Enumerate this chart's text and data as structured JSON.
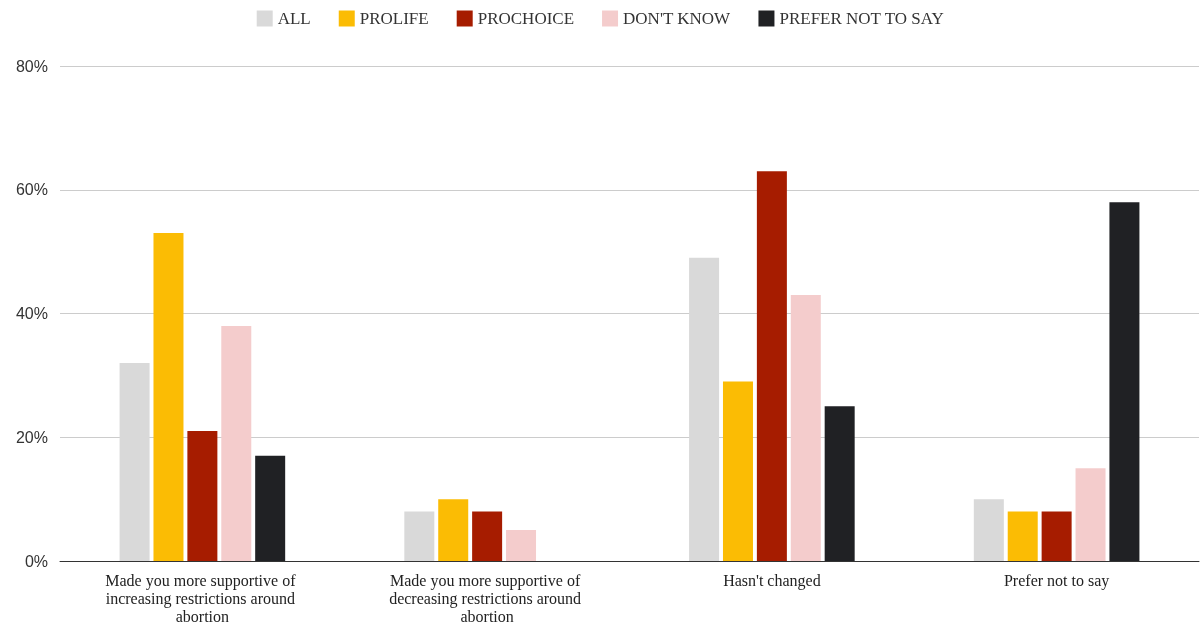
{
  "chart_data": {
    "type": "bar",
    "categories": [
      "Made you more supportive of increasing restrictions around abortion",
      "Made you more supportive of decreasing restrictions around abortion",
      "Hasn't changed",
      "Prefer not to say"
    ],
    "series": [
      {
        "name": "ALL",
        "color": "#d9d9d9",
        "values": [
          32,
          8,
          49,
          10
        ]
      },
      {
        "name": "PROLIFE",
        "color": "#fbbc04",
        "values": [
          53,
          10,
          29,
          8
        ]
      },
      {
        "name": "PROCHOICE",
        "color": "#a61c00",
        "values": [
          21,
          8,
          63,
          8
        ]
      },
      {
        "name": "DON'T KNOW",
        "color": "#f4cccc",
        "values": [
          38,
          5,
          43,
          15
        ]
      },
      {
        "name": "PREFER NOT TO SAY",
        "color": "#202124",
        "values": [
          17,
          null,
          25,
          58
        ]
      }
    ],
    "ylim": [
      0,
      80
    ],
    "yticks": [
      {
        "value": 0,
        "label": "0%"
      },
      {
        "value": 20,
        "label": "20%"
      },
      {
        "value": 40,
        "label": "40%"
      },
      {
        "value": 60,
        "label": "60%"
      },
      {
        "value": 80,
        "label": "80%"
      }
    ],
    "grid": "y",
    "legend": "top"
  }
}
